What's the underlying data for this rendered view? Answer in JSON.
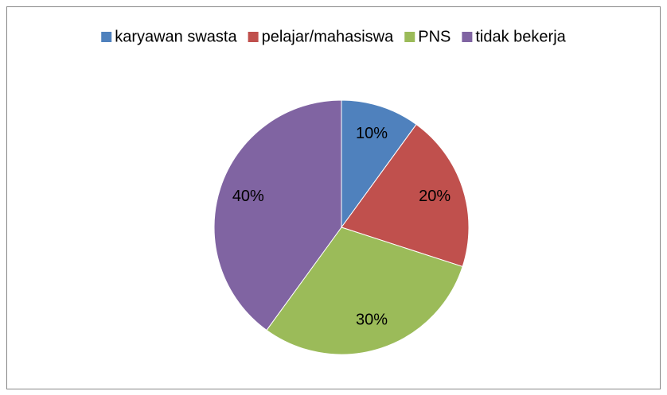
{
  "chart_data": {
    "type": "pie",
    "categories": [
      "karyawan swasta",
      "pelajar/mahasiswa",
      "PNS",
      "tidak bekerja"
    ],
    "values": [
      10,
      20,
      30,
      40
    ],
    "value_labels": [
      "10%",
      "20%",
      "30%",
      "40%"
    ],
    "colors": [
      "#4f81bd",
      "#c0504d",
      "#9bbb59",
      "#8064a2"
    ],
    "legend": "top"
  }
}
